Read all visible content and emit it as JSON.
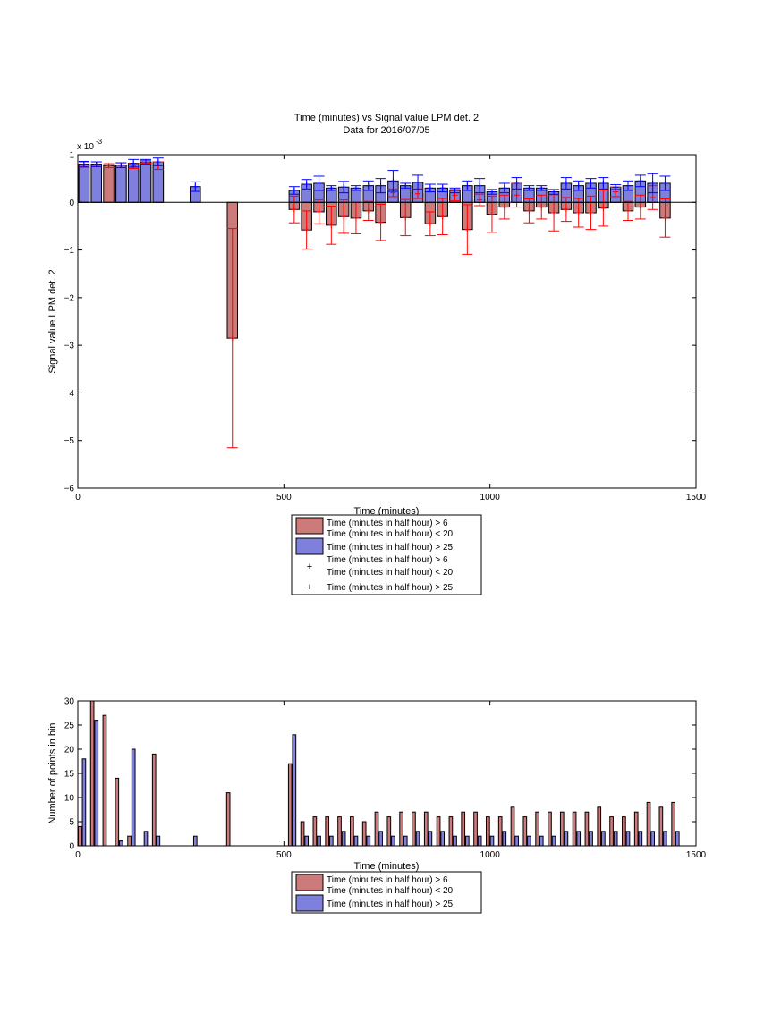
{
  "colors": {
    "red_fill": "#cc7a7a",
    "blue_fill": "#7f7fdd",
    "red_marker": "#ff0000",
    "blue_marker": "#0000ff",
    "axis": "#000000"
  },
  "chart_data": [
    {
      "type": "bar",
      "title": "Time (minutes) vs Signal value LPM det. 2",
      "subtitle": "Data for 2016/07/05",
      "xlabel": "Time (minutes)",
      "ylabel": "Signal value LPM det. 2",
      "y_exponent_label": "x 10",
      "y_exponent_power": "-3",
      "xlim": [
        0,
        1500
      ],
      "ylim": [
        -6,
        1
      ],
      "xticks": [
        "0",
        "500",
        "1000",
        "1500"
      ],
      "yticks": [
        "1",
        "0",
        "−1",
        "−2",
        "−3",
        "−4",
        "−5",
        "−6"
      ],
      "ytick_values": [
        1,
        0,
        -1,
        -2,
        -3,
        -4,
        -5,
        -6
      ],
      "xtick_values": [
        0,
        500,
        1000,
        1500
      ],
      "grid": false,
      "legend_position": "below",
      "legend": [
        {
          "kind": "patch",
          "color": "red",
          "text": "Time (minutes in half hour) > 6",
          "text2": "Time (minutes in half hour) < 20"
        },
        {
          "kind": "patch",
          "color": "blue",
          "text": "Time (minutes in half hour) > 25"
        },
        {
          "kind": "marker",
          "color": "red",
          "text": "Time (minutes in half hour) > 6",
          "text2": "Time (minutes in half hour) < 20"
        },
        {
          "kind": "marker",
          "color": "blue",
          "text": "Time (minutes in half hour) > 25"
        }
      ],
      "series": [
        {
          "color": "red",
          "bar_width": 25,
          "bars": [
            {
              "x": 15,
              "v": 0.8,
              "e": 0.05
            },
            {
              "x": 45,
              "v": 0.8,
              "e": 0.05
            },
            {
              "x": 75,
              "v": 0.77,
              "e": 0.04
            },
            {
              "x": 105,
              "v": 0.78,
              "e": 0.05
            },
            {
              "x": 135,
              "v": 0.76,
              "e": 0.05
            },
            {
              "x": 165,
              "v": 0.85,
              "e": 0.03
            },
            {
              "x": 195,
              "v": 0.77,
              "e": 0.08
            },
            {
              "x": 375,
              "v": -2.85,
              "e": 2.3
            },
            {
              "x": 525,
              "v": -0.15,
              "e": 0.28
            },
            {
              "x": 555,
              "v": -0.58,
              "e": 0.4
            },
            {
              "x": 585,
              "v": -0.2,
              "e": 0.25
            },
            {
              "x": 615,
              "v": -0.48,
              "e": 0.4
            },
            {
              "x": 645,
              "v": -0.3,
              "e": 0.35
            },
            {
              "x": 675,
              "v": -0.33,
              "e": 0.33
            },
            {
              "x": 705,
              "v": -0.18,
              "e": 0.2
            },
            {
              "x": 735,
              "v": -0.42,
              "e": 0.38
            },
            {
              "x": 765,
              "v": 0.2,
              "e": 0.08
            },
            {
              "x": 795,
              "v": -0.32,
              "e": 0.38
            },
            {
              "x": 825,
              "v": 0.18,
              "e": 0.1
            },
            {
              "x": 855,
              "v": -0.45,
              "e": 0.25
            },
            {
              "x": 885,
              "v": -0.3,
              "e": 0.38
            },
            {
              "x": 915,
              "v": 0.15,
              "e": 0.12
            },
            {
              "x": 945,
              "v": -0.57,
              "e": 0.52
            },
            {
              "x": 975,
              "v": 0.05,
              "e": 0.12
            },
            {
              "x": 1005,
              "v": -0.25,
              "e": 0.38
            },
            {
              "x": 1035,
              "v": -0.1,
              "e": 0.25
            },
            {
              "x": 1065,
              "v": 0.15,
              "e": 0.25
            },
            {
              "x": 1095,
              "v": -0.18,
              "e": 0.25
            },
            {
              "x": 1125,
              "v": -0.1,
              "e": 0.25
            },
            {
              "x": 1155,
              "v": -0.22,
              "e": 0.38
            },
            {
              "x": 1185,
              "v": -0.15,
              "e": 0.25
            },
            {
              "x": 1215,
              "v": -0.22,
              "e": 0.3
            },
            {
              "x": 1245,
              "v": -0.22,
              "e": 0.35
            },
            {
              "x": 1275,
              "v": -0.12,
              "e": 0.38
            },
            {
              "x": 1305,
              "v": 0.22,
              "e": 0.1
            },
            {
              "x": 1335,
              "v": -0.18,
              "e": 0.2
            },
            {
              "x": 1365,
              "v": -0.1,
              "e": 0.25
            },
            {
              "x": 1395,
              "v": 0.1,
              "e": 0.25
            },
            {
              "x": 1425,
              "v": -0.33,
              "e": 0.4
            }
          ]
        },
        {
          "color": "blue",
          "bar_width": 25,
          "bars": [
            {
              "x": 15,
              "v": 0.8,
              "e": 0.06
            },
            {
              "x": 45,
              "v": 0.8,
              "e": 0.05
            },
            {
              "x": 105,
              "v": 0.78,
              "e": 0.05
            },
            {
              "x": 135,
              "v": 0.82,
              "e": 0.08
            },
            {
              "x": 165,
              "v": 0.85,
              "e": 0.05
            },
            {
              "x": 195,
              "v": 0.85,
              "e": 0.08
            },
            {
              "x": 285,
              "v": 0.33,
              "e": 0.1
            },
            {
              "x": 525,
              "v": 0.25,
              "e": 0.08
            },
            {
              "x": 555,
              "v": 0.38,
              "e": 0.1
            },
            {
              "x": 585,
              "v": 0.4,
              "e": 0.15
            },
            {
              "x": 615,
              "v": 0.3,
              "e": 0.05
            },
            {
              "x": 645,
              "v": 0.32,
              "e": 0.12
            },
            {
              "x": 675,
              "v": 0.3,
              "e": 0.05
            },
            {
              "x": 705,
              "v": 0.35,
              "e": 0.1
            },
            {
              "x": 735,
              "v": 0.35,
              "e": 0.15
            },
            {
              "x": 765,
              "v": 0.45,
              "e": 0.22
            },
            {
              "x": 795,
              "v": 0.35,
              "e": 0.05
            },
            {
              "x": 825,
              "v": 0.42,
              "e": 0.15
            },
            {
              "x": 855,
              "v": 0.3,
              "e": 0.08
            },
            {
              "x": 885,
              "v": 0.3,
              "e": 0.08
            },
            {
              "x": 915,
              "v": 0.25,
              "e": 0.05
            },
            {
              "x": 945,
              "v": 0.35,
              "e": 0.1
            },
            {
              "x": 975,
              "v": 0.35,
              "e": 0.15
            },
            {
              "x": 1005,
              "v": 0.22,
              "e": 0.05
            },
            {
              "x": 1035,
              "v": 0.3,
              "e": 0.1
            },
            {
              "x": 1065,
              "v": 0.4,
              "e": 0.12
            },
            {
              "x": 1095,
              "v": 0.3,
              "e": 0.05
            },
            {
              "x": 1125,
              "v": 0.3,
              "e": 0.05
            },
            {
              "x": 1155,
              "v": 0.22,
              "e": 0.05
            },
            {
              "x": 1185,
              "v": 0.4,
              "e": 0.12
            },
            {
              "x": 1215,
              "v": 0.35,
              "e": 0.1
            },
            {
              "x": 1245,
              "v": 0.4,
              "e": 0.1
            },
            {
              "x": 1275,
              "v": 0.4,
              "e": 0.12
            },
            {
              "x": 1305,
              "v": 0.32,
              "e": 0.05
            },
            {
              "x": 1335,
              "v": 0.35,
              "e": 0.1
            },
            {
              "x": 1365,
              "v": 0.45,
              "e": 0.12
            },
            {
              "x": 1395,
              "v": 0.4,
              "e": 0.2
            },
            {
              "x": 1425,
              "v": 0.4,
              "e": 0.15
            }
          ]
        }
      ]
    },
    {
      "type": "bar",
      "title": "",
      "xlabel": "Time (minutes)",
      "ylabel": "Number of points in bin",
      "xlim": [
        0,
        1500
      ],
      "ylim": [
        0,
        30
      ],
      "xticks": [
        "0",
        "500",
        "1000",
        "1500"
      ],
      "xtick_values": [
        0,
        500,
        1000,
        1500
      ],
      "yticks": [
        "0",
        "5",
        "10",
        "15",
        "20",
        "25",
        "30"
      ],
      "ytick_values": [
        0,
        5,
        10,
        15,
        20,
        25,
        30
      ],
      "grid": false,
      "legend_position": "below",
      "legend": [
        {
          "kind": "patch",
          "color": "red",
          "text": "Time (minutes in half hour) > 6",
          "text2": "Time (minutes in half hour) < 20"
        },
        {
          "kind": "patch",
          "color": "blue",
          "text": "Time (minutes in half hour) > 25"
        }
      ],
      "series": [
        {
          "color": "red",
          "bar_width": 8,
          "bars": [
            {
              "x": 5,
              "v": 4
            },
            {
              "x": 35,
              "v": 30
            },
            {
              "x": 65,
              "v": 27
            },
            {
              "x": 95,
              "v": 14
            },
            {
              "x": 125,
              "v": 2
            },
            {
              "x": 185,
              "v": 19
            },
            {
              "x": 365,
              "v": 11
            },
            {
              "x": 515,
              "v": 17
            },
            {
              "x": 545,
              "v": 5
            },
            {
              "x": 575,
              "v": 6
            },
            {
              "x": 605,
              "v": 6
            },
            {
              "x": 635,
              "v": 6
            },
            {
              "x": 665,
              "v": 6
            },
            {
              "x": 695,
              "v": 5
            },
            {
              "x": 725,
              "v": 7
            },
            {
              "x": 755,
              "v": 6
            },
            {
              "x": 785,
              "v": 7
            },
            {
              "x": 815,
              "v": 7
            },
            {
              "x": 845,
              "v": 7
            },
            {
              "x": 875,
              "v": 6
            },
            {
              "x": 905,
              "v": 6
            },
            {
              "x": 935,
              "v": 7
            },
            {
              "x": 965,
              "v": 7
            },
            {
              "x": 995,
              "v": 6
            },
            {
              "x": 1025,
              "v": 6
            },
            {
              "x": 1055,
              "v": 8
            },
            {
              "x": 1085,
              "v": 6
            },
            {
              "x": 1115,
              "v": 7
            },
            {
              "x": 1145,
              "v": 7
            },
            {
              "x": 1175,
              "v": 7
            },
            {
              "x": 1205,
              "v": 7
            },
            {
              "x": 1235,
              "v": 7
            },
            {
              "x": 1265,
              "v": 8
            },
            {
              "x": 1295,
              "v": 6
            },
            {
              "x": 1325,
              "v": 6
            },
            {
              "x": 1355,
              "v": 7
            },
            {
              "x": 1385,
              "v": 9
            },
            {
              "x": 1415,
              "v": 8
            },
            {
              "x": 1445,
              "v": 9
            }
          ]
        },
        {
          "color": "blue",
          "bar_width": 8,
          "bars": [
            {
              "x": 15,
              "v": 18
            },
            {
              "x": 45,
              "v": 26
            },
            {
              "x": 105,
              "v": 1
            },
            {
              "x": 135,
              "v": 20
            },
            {
              "x": 165,
              "v": 3
            },
            {
              "x": 195,
              "v": 2
            },
            {
              "x": 285,
              "v": 2
            },
            {
              "x": 525,
              "v": 23
            },
            {
              "x": 555,
              "v": 2
            },
            {
              "x": 585,
              "v": 2
            },
            {
              "x": 615,
              "v": 2
            },
            {
              "x": 645,
              "v": 3
            },
            {
              "x": 675,
              "v": 2
            },
            {
              "x": 705,
              "v": 2
            },
            {
              "x": 735,
              "v": 3
            },
            {
              "x": 765,
              "v": 2
            },
            {
              "x": 795,
              "v": 2
            },
            {
              "x": 825,
              "v": 3
            },
            {
              "x": 855,
              "v": 3
            },
            {
              "x": 885,
              "v": 3
            },
            {
              "x": 915,
              "v": 2
            },
            {
              "x": 945,
              "v": 2
            },
            {
              "x": 975,
              "v": 2
            },
            {
              "x": 1005,
              "v": 2
            },
            {
              "x": 1035,
              "v": 3
            },
            {
              "x": 1065,
              "v": 2
            },
            {
              "x": 1095,
              "v": 2
            },
            {
              "x": 1125,
              "v": 2
            },
            {
              "x": 1155,
              "v": 2
            },
            {
              "x": 1185,
              "v": 3
            },
            {
              "x": 1215,
              "v": 3
            },
            {
              "x": 1245,
              "v": 3
            },
            {
              "x": 1275,
              "v": 3
            },
            {
              "x": 1305,
              "v": 3
            },
            {
              "x": 1335,
              "v": 3
            },
            {
              "x": 1365,
              "v": 3
            },
            {
              "x": 1395,
              "v": 3
            },
            {
              "x": 1425,
              "v": 3
            },
            {
              "x": 1455,
              "v": 3
            }
          ]
        }
      ]
    }
  ]
}
